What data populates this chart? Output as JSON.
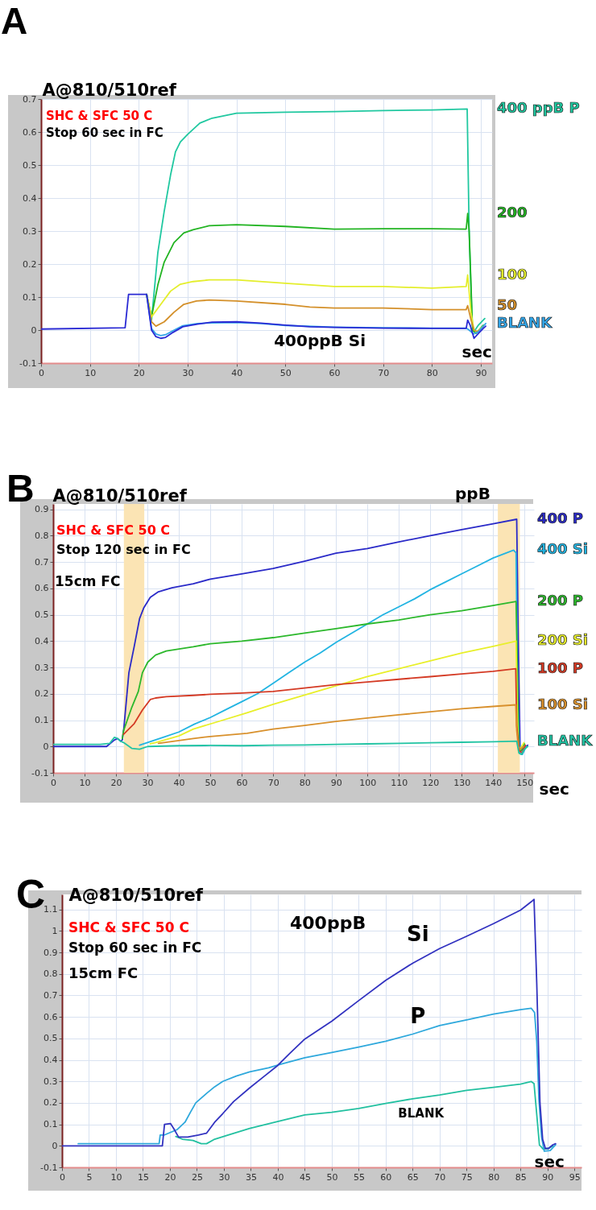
{
  "chart_data": [
    {
      "type": "line",
      "title": "A",
      "xlabel": "sec",
      "ylabel": "A@810/510ref",
      "annotations": [
        "SHC & SFC 50 C",
        "Stop 60 sec in FC"
      ],
      "xlim": [
        0,
        92.3
      ],
      "xticks": [
        0,
        10,
        20,
        30,
        40,
        50,
        60,
        70,
        80,
        90
      ],
      "ylim": [
        -0.1,
        0.7
      ],
      "yticks": [
        -0.1,
        0,
        0.1,
        0.2,
        0.3,
        0.4,
        0.5,
        0.6,
        0.7
      ],
      "grid": true,
      "series": [
        {
          "name": "400 ppB P",
          "color": "#20c8a0",
          "x": [
            21.6,
            22.6,
            23.9,
            25.2,
            26.5,
            27.5,
            28.5,
            30,
            32.5,
            35,
            40,
            50,
            60,
            70,
            80,
            87.2,
            87.6,
            88.2,
            88.6,
            89.5,
            90.8
          ],
          "values": [
            0.108,
            0.03,
            0.235,
            0.36,
            0.47,
            0.54,
            0.57,
            0.593,
            0.627,
            0.642,
            0.657,
            0.66,
            0.662,
            0.665,
            0.667,
            0.67,
            0.3,
            0.02,
            -0.005,
            0.015,
            0.035
          ]
        },
        {
          "name": "200",
          "color": "#22b422",
          "x": [
            21.6,
            22.6,
            23.9,
            25.2,
            27.2,
            29.2,
            31.1,
            34.4,
            40,
            50,
            60,
            70,
            80,
            87,
            87.3,
            87.6,
            88.3,
            89,
            90.5
          ],
          "values": [
            0.108,
            0.04,
            0.137,
            0.206,
            0.265,
            0.294,
            0.304,
            0.316,
            0.319,
            0.314,
            0.306,
            0.307,
            0.307,
            0.306,
            0.353,
            0.3,
            0.0,
            -0.01,
            0.015
          ]
        },
        {
          "name": "100",
          "color": "#e4ee2c",
          "x": [
            21.6,
            22.6,
            24.5,
            26.5,
            28.5,
            31.1,
            34.4,
            40,
            50,
            60,
            70,
            80,
            87,
            87.3,
            88,
            88.6,
            89.2,
            90.5
          ],
          "values": [
            0.108,
            0.04,
            0.078,
            0.118,
            0.139,
            0.147,
            0.152,
            0.152,
            0.142,
            0.132,
            0.132,
            0.127,
            0.132,
            0.167,
            0.05,
            0.0,
            -0.005,
            0.012
          ]
        },
        {
          "name": "50",
          "color": "#d4902a",
          "x": [
            21.6,
            22.6,
            23.5,
            25.2,
            27.2,
            29.2,
            31.8,
            34.4,
            40,
            50,
            55,
            60,
            70,
            80,
            87,
            87.3,
            88,
            88.6,
            89.3,
            90.5
          ],
          "values": [
            0.108,
            0.025,
            0.012,
            0.025,
            0.054,
            0.078,
            0.088,
            0.091,
            0.088,
            0.078,
            0.07,
            0.067,
            0.067,
            0.062,
            0.062,
            0.074,
            0.03,
            0.0,
            -0.005,
            0.01
          ]
        },
        {
          "name": "BLANK",
          "color": "#33a6e8",
          "x": [
            21.6,
            22.6,
            23.5,
            24.5,
            25.5,
            27,
            29,
            32,
            35,
            40,
            45,
            50,
            60,
            70,
            80,
            87,
            87.6,
            88.5,
            89.5,
            90.5,
            91
          ],
          "values": [
            0.108,
            0.005,
            -0.012,
            -0.017,
            -0.014,
            -0.002,
            0.013,
            0.02,
            0.022,
            0.023,
            0.02,
            0.014,
            0.009,
            0.007,
            0.006,
            0.006,
            0.0,
            -0.012,
            -0.005,
            0.012,
            0.02
          ]
        },
        {
          "name": "400ppB  Si",
          "color": "#2a2ad4",
          "x": [
            0,
            17.2,
            17.9,
            21.6,
            22.6,
            23.5,
            24.5,
            25.5,
            27,
            29,
            32,
            35,
            40,
            45,
            50,
            55,
            60,
            70,
            80,
            87,
            87.3,
            87.8,
            88.6,
            89.5,
            90.5,
            91
          ],
          "values": [
            0.003,
            0.007,
            0.108,
            0.108,
            0.0,
            -0.02,
            -0.025,
            -0.022,
            -0.007,
            0.01,
            0.018,
            0.024,
            0.025,
            0.021,
            0.015,
            0.01,
            0.008,
            0.006,
            0.005,
            0.005,
            0.03,
            0.015,
            -0.025,
            -0.01,
            0.005,
            0.012
          ]
        }
      ]
    },
    {
      "type": "line",
      "title": "B",
      "xlabel": "sec",
      "ylabel": "A@810/510ref",
      "annotations": [
        "SHC & SFC 50 C",
        "Stop 120 sec in FC",
        "15cm  FC",
        "ppB"
      ],
      "xlim": [
        0,
        153
      ],
      "xticks": [
        0,
        10,
        20,
        30,
        40,
        50,
        60,
        70,
        80,
        90,
        100,
        110,
        120,
        130,
        140,
        150
      ],
      "ylim": [
        -0.1,
        0.92
      ],
      "yticks": [
        -0.1,
        0,
        0.1,
        0.2,
        0.3,
        0.4,
        0.5,
        0.6,
        0.7,
        0.8,
        0.9
      ],
      "grid": true,
      "bands": [
        {
          "axis": "x",
          "from": 22.5,
          "to": 29,
          "color": "#fbe4b4"
        },
        {
          "axis": "x",
          "from": 141.5,
          "to": 148.5,
          "color": "#fbe4b4"
        }
      ],
      "series": [
        {
          "name": "400 P",
          "color": "#2a2ac8",
          "x": [
            0,
            17,
            18,
            19.5,
            20.5,
            21.5,
            22,
            22.5,
            24.1,
            25.8,
            27.5,
            28.8,
            30.9,
            33.5,
            37.8,
            44.6,
            50,
            60,
            70,
            80,
            90,
            100,
            110,
            120,
            130,
            140,
            147.5,
            148,
            148.6,
            149.5,
            151
          ],
          "values": [
            0.0,
            0.0,
            0.01,
            0.025,
            0.03,
            0.02,
            0.025,
            0.07,
            0.28,
            0.38,
            0.485,
            0.525,
            0.566,
            0.587,
            0.602,
            0.617,
            0.635,
            0.655,
            0.675,
            0.703,
            0.733,
            0.751,
            0.776,
            0.8,
            0.823,
            0.845,
            0.862,
            0.4,
            -0.02,
            -0.01,
            0.005
          ]
        },
        {
          "name": "400 Si",
          "color": "#22b4e2",
          "x": [
            27.5,
            30,
            35,
            40,
            45,
            50,
            55,
            60,
            65,
            70,
            75,
            80,
            85,
            90,
            95,
            100,
            105,
            110,
            115,
            120,
            125,
            130,
            135,
            140,
            146.5,
            147.3,
            147.8,
            148.4,
            149.3,
            150.5
          ],
          "values": [
            0.005,
            0.015,
            0.035,
            0.055,
            0.085,
            0.11,
            0.14,
            0.17,
            0.2,
            0.24,
            0.28,
            0.32,
            0.355,
            0.395,
            0.43,
            0.465,
            0.5,
            0.53,
            0.56,
            0.595,
            0.625,
            0.655,
            0.685,
            0.715,
            0.745,
            0.735,
            0.2,
            -0.025,
            -0.03,
            0.0
          ]
        },
        {
          "name": "200 P",
          "color": "#2cb82c",
          "x": [
            22,
            22.4,
            25,
            27.1,
            28.4,
            30.1,
            32.6,
            36,
            44.6,
            50,
            60,
            70,
            80,
            90,
            100,
            110,
            120,
            130,
            140,
            147.3,
            147.7,
            148.2,
            149,
            150
          ],
          "values": [
            0.03,
            0.06,
            0.148,
            0.209,
            0.28,
            0.32,
            0.347,
            0.362,
            0.378,
            0.39,
            0.4,
            0.413,
            0.43,
            0.447,
            0.465,
            0.48,
            0.5,
            0.515,
            0.535,
            0.55,
            0.3,
            -0.01,
            -0.015,
            0.01
          ]
        },
        {
          "name": "200 Si",
          "color": "#e8ef2a",
          "x": [
            30.9,
            32.6,
            40,
            44.6,
            53.2,
            61.7,
            70,
            80,
            90,
            100,
            110,
            120,
            130,
            140,
            147.3,
            147.7,
            148.1,
            148.8,
            149.8
          ],
          "values": [
            0.01,
            0.015,
            0.04,
            0.066,
            0.097,
            0.128,
            0.16,
            0.195,
            0.23,
            0.265,
            0.295,
            0.325,
            0.355,
            0.38,
            0.4,
            0.1,
            -0.02,
            -0.005,
            0.015
          ]
        },
        {
          "name": "100 P",
          "color": "#d43a24",
          "x": [
            22.4,
            25.8,
            28.4,
            30.9,
            32.6,
            36,
            44.6,
            50,
            60,
            70,
            80,
            90,
            100,
            110,
            120,
            130,
            140,
            147.2,
            147.5,
            148.3,
            149.2,
            150.3
          ],
          "values": [
            0.046,
            0.087,
            0.138,
            0.178,
            0.184,
            0.189,
            0.194,
            0.198,
            0.203,
            0.209,
            0.222,
            0.235,
            0.245,
            0.255,
            0.265,
            0.275,
            0.285,
            0.295,
            0.08,
            -0.015,
            -0.025,
            0.005
          ]
        },
        {
          "name": "100 Si",
          "color": "#d8902c",
          "x": [
            33.5,
            44.6,
            50,
            61.7,
            70,
            80,
            90,
            100,
            110,
            120,
            130,
            140,
            147.2,
            147.5,
            148,
            148.7,
            149.6
          ],
          "values": [
            0.012,
            0.03,
            0.038,
            0.05,
            0.066,
            0.08,
            0.095,
            0.108,
            0.12,
            0.132,
            0.143,
            0.152,
            0.158,
            0.06,
            0.0,
            -0.01,
            0.0
          ]
        },
        {
          "name": "BLANK",
          "color": "#22c4a4",
          "x": [
            0,
            15,
            18,
            19.5,
            20.5,
            21.5,
            22.4,
            25,
            27.5,
            30.1,
            40,
            50,
            60,
            70,
            80,
            90,
            100,
            110,
            120,
            130,
            140,
            147.5,
            148.2,
            149,
            150,
            151
          ],
          "values": [
            0.008,
            0.008,
            0.012,
            0.035,
            0.03,
            0.02,
            0.015,
            -0.007,
            -0.01,
            0.0,
            0.003,
            0.004,
            0.003,
            0.005,
            0.006,
            0.008,
            0.01,
            0.012,
            0.014,
            0.016,
            0.018,
            0.02,
            -0.025,
            -0.03,
            -0.01,
            0.0
          ]
        }
      ]
    },
    {
      "type": "line",
      "title": "C",
      "xlabel": "sec",
      "ylabel": "A@810/510ref",
      "annotations": [
        "SHC & SFC 50 C",
        "Stop 60 sec in FC",
        "15cm  FC",
        "400ppB"
      ],
      "xlim": [
        0,
        96.3
      ],
      "xticks": [
        0,
        5,
        10,
        15,
        20,
        25,
        30,
        35,
        40,
        45,
        50,
        55,
        60,
        65,
        70,
        75,
        80,
        85,
        90,
        95
      ],
      "ylim": [
        -0.1,
        1.17
      ],
      "yticks": [
        -0.1,
        0,
        0.1,
        0.2,
        0.3,
        0.4,
        0.5,
        0.6,
        0.7,
        0.8,
        0.9,
        1,
        1.1
      ],
      "grid": true,
      "series": [
        {
          "name": "BLANK",
          "color": "#22c0a0",
          "x": [
            21.1,
            22.3,
            24.3,
            25.8,
            26.8,
            28.3,
            30.8,
            34.8,
            39.8,
            45,
            50,
            55,
            60,
            65,
            70,
            75,
            80,
            85,
            87,
            87.5,
            88,
            88.5,
            89.2,
            90.2,
            91
          ],
          "values": [
            0.044,
            0.031,
            0.025,
            0.01,
            0.01,
            0.031,
            0.05,
            0.081,
            0.112,
            0.144,
            0.156,
            0.174,
            0.197,
            0.219,
            0.237,
            0.258,
            0.272,
            0.287,
            0.299,
            0.29,
            0.147,
            0.004,
            -0.015,
            -0.012,
            0.0
          ]
        },
        {
          "name": "P",
          "color": "#2ea8dc",
          "x": [
            3,
            18,
            18.2,
            18.9,
            21.3,
            22.8,
            23.8,
            24.8,
            26.8,
            28.3,
            29.8,
            32.3,
            34.8,
            38.3,
            40.7,
            45,
            50,
            55,
            60,
            65,
            70,
            75,
            80,
            85,
            87,
            87.6,
            88,
            88.4,
            88.9,
            89.4,
            90.5,
            91.5
          ],
          "values": [
            0.01,
            0.01,
            0.05,
            0.05,
            0.075,
            0.11,
            0.156,
            0.2,
            0.244,
            0.275,
            0.3,
            0.325,
            0.344,
            0.363,
            0.381,
            0.41,
            0.434,
            0.46,
            0.487,
            0.52,
            0.56,
            0.586,
            0.613,
            0.634,
            0.64,
            0.62,
            0.487,
            0.22,
            0.04,
            -0.025,
            -0.022,
            0.005
          ]
        },
        {
          "name": "Si",
          "color": "#3232c0",
          "x": [
            0,
            17.6,
            18.6,
            19,
            20.1,
            20.7,
            21.6,
            23.3,
            25.3,
            26.8,
            28.3,
            29.8,
            31.8,
            34.8,
            37.3,
            39.8,
            42.2,
            45,
            50,
            55,
            60,
            65,
            70,
            75,
            80,
            85,
            87,
            87.5,
            88,
            88.6,
            89.1,
            89.6,
            90.2,
            91,
            91.5
          ],
          "values": [
            0.0,
            0.0,
            0.0,
            0.1,
            0.104,
            0.081,
            0.041,
            0.041,
            0.05,
            0.059,
            0.11,
            0.15,
            0.206,
            0.27,
            0.32,
            0.37,
            0.43,
            0.497,
            0.58,
            0.676,
            0.77,
            0.85,
            0.918,
            0.975,
            1.034,
            1.097,
            1.136,
            1.147,
            0.76,
            0.2,
            0.03,
            -0.012,
            -0.012,
            0.005,
            0.01
          ]
        }
      ]
    }
  ]
}
